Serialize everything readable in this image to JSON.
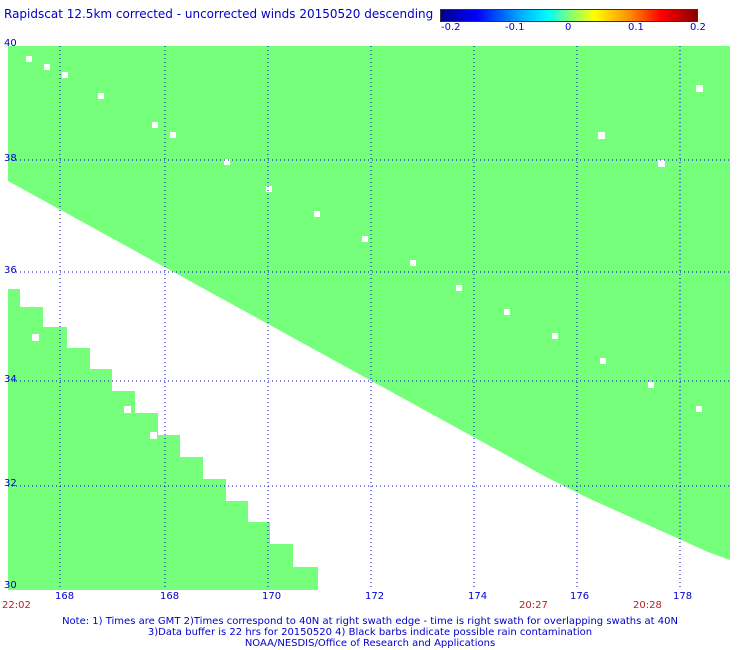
{
  "title": "Rapidscat 12.5km corrected - uncorrected winds 20150520 descending",
  "colorbar": {
    "labels": [
      "-0.2",
      "-0.1",
      "0",
      "0.1",
      "0.2"
    ]
  },
  "axes": {
    "x_ticks": [
      "168",
      "168",
      "170",
      "172",
      "174",
      "176",
      "178"
    ],
    "y_ticks": [
      "40",
      "38",
      "36",
      "34",
      "32",
      "30"
    ]
  },
  "times": {
    "left_bottom": "22:02",
    "mid1": "20:27",
    "mid2": "20:28"
  },
  "notes": {
    "line1": "Note: 1) Times are GMT 2)Times correspond to 40N at right swath edge - time is right swath for overlapping swaths at 40N",
    "line2": "3)Data buffer is 22 hrs for 20150520 4) Black barbs indicate possible rain contamination",
    "line3": "NOAA/NESDIS/Office of Research and Applications"
  },
  "colors": {
    "swath": "#76ff7a",
    "grid": "#0000cc",
    "title": "#0000cc",
    "time": "#b22222"
  }
}
